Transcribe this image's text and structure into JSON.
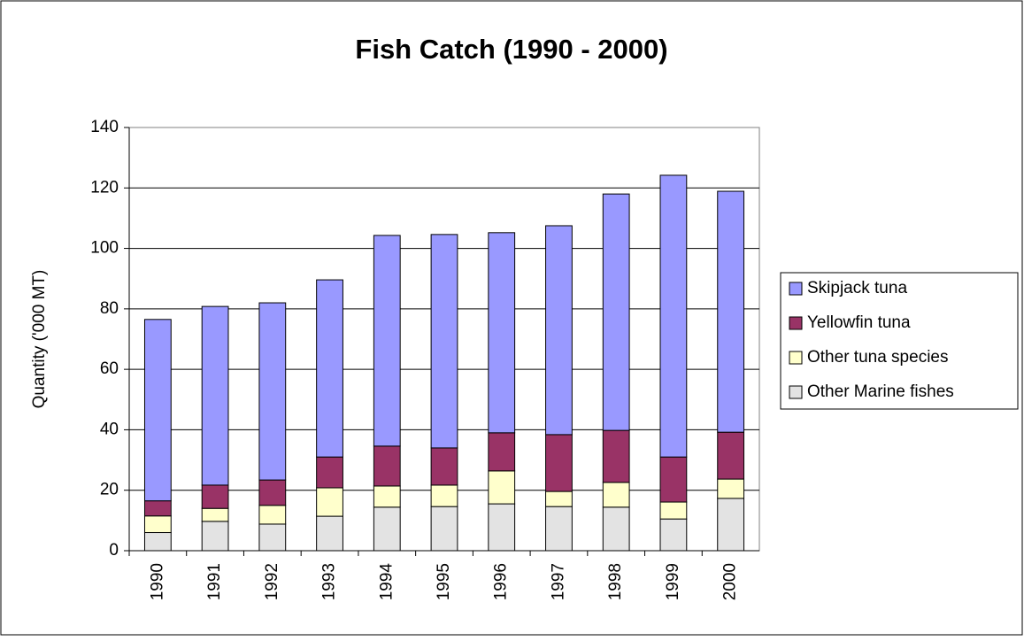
{
  "chart_data": {
    "type": "stacked_bar",
    "title": "Fish Catch (1990 - 2000)",
    "y_label": "Quantity ('000 MT)",
    "categories": [
      "1990",
      "1991",
      "1992",
      "1993",
      "1994",
      "1995",
      "1996",
      "1997",
      "1998",
      "1999",
      "2000"
    ],
    "series": [
      {
        "name": "Other Marine fishes",
        "color": "#e3e3e3",
        "values": [
          6,
          9.7,
          8.8,
          11.4,
          14.4,
          14.6,
          15.5,
          14.6,
          14.4,
          10.5,
          17.3
        ]
      },
      {
        "name": "Other tuna species",
        "color": "#ffffcc",
        "values": [
          5.5,
          4.3,
          6.2,
          9.4,
          7,
          7.1,
          10.9,
          5,
          8.2,
          5.6,
          6.4
        ]
      },
      {
        "name": "Yellowfin tuna",
        "color": "#993366",
        "values": [
          5,
          7.7,
          8.4,
          10.2,
          13.2,
          12.3,
          12.6,
          18.8,
          17.2,
          14.9,
          15.5
        ]
      },
      {
        "name": "Skipjack tuna",
        "color": "#9999ff",
        "values": [
          60,
          59.1,
          58.6,
          58.6,
          69.7,
          70.6,
          66.2,
          69.1,
          78.2,
          93.2,
          79.7
        ]
      }
    ],
    "ylim": [
      0,
      140
    ],
    "yticks": [
      0,
      20,
      40,
      60,
      80,
      100,
      120,
      140
    ],
    "grid": true,
    "legend": "right"
  }
}
